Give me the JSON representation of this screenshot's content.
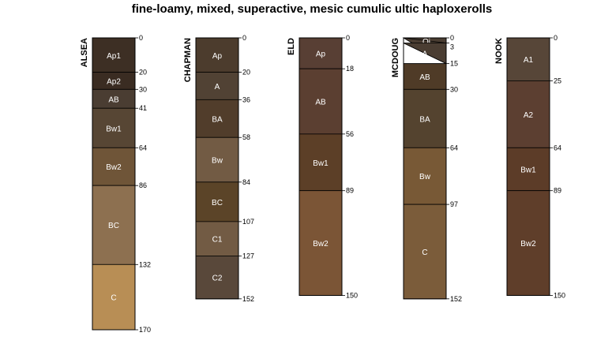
{
  "chart_data": {
    "type": "soil-profile",
    "title": "fine-loamy, mixed, superactive, mesic cumulic ultic haploxerolls",
    "depth_units": "cm",
    "profiles": [
      {
        "name": "ALSEA",
        "max_depth": 170,
        "horizons": [
          {
            "name": "Ap1",
            "top": 0,
            "bottom": 20,
            "color": "#3d2f24"
          },
          {
            "name": "Ap2",
            "top": 20,
            "bottom": 30,
            "color": "#3a2c22"
          },
          {
            "name": "AB",
            "top": 30,
            "bottom": 41,
            "color": "#4a3d32"
          },
          {
            "name": "Bw1",
            "top": 41,
            "bottom": 64,
            "color": "#574634"
          },
          {
            "name": "Bw2",
            "top": 64,
            "bottom": 86,
            "color": "#6f5538"
          },
          {
            "name": "BC",
            "top": 86,
            "bottom": 132,
            "color": "#8d7050"
          },
          {
            "name": "C",
            "top": 132,
            "bottom": 170,
            "color": "#b88e55"
          }
        ]
      },
      {
        "name": "CHAPMAN",
        "max_depth": 152,
        "horizons": [
          {
            "name": "Ap",
            "top": 0,
            "bottom": 20,
            "color": "#4c3c2d"
          },
          {
            "name": "A",
            "top": 20,
            "bottom": 36,
            "color": "#514234"
          },
          {
            "name": "BA",
            "top": 36,
            "bottom": 58,
            "color": "#513d2b"
          },
          {
            "name": "Bw",
            "top": 58,
            "bottom": 84,
            "color": "#725b44"
          },
          {
            "name": "BC",
            "top": 84,
            "bottom": 107,
            "color": "#5b4428"
          },
          {
            "name": "C1",
            "top": 107,
            "bottom": 127,
            "color": "#725b44"
          },
          {
            "name": "C2",
            "top": 127,
            "bottom": 152,
            "color": "#59483a"
          }
        ]
      },
      {
        "name": "ELD",
        "max_depth": 150,
        "horizons": [
          {
            "name": "Ap",
            "top": 0,
            "bottom": 18,
            "color": "#583f34"
          },
          {
            "name": "AB",
            "top": 18,
            "bottom": 56,
            "color": "#5b3f31"
          },
          {
            "name": "Bw1",
            "top": 56,
            "bottom": 89,
            "color": "#5c3f27"
          },
          {
            "name": "Bw2",
            "top": 89,
            "bottom": 150,
            "color": "#7b5536"
          }
        ]
      },
      {
        "name": "MCDOUG",
        "max_depth": 152,
        "horizons": [
          {
            "name": "Oi",
            "top": 0,
            "bottom": 3,
            "color": "#4a3d32"
          },
          {
            "name": "A",
            "top": 3,
            "bottom": 15,
            "color": "#4a3d32"
          },
          {
            "name": "AB",
            "top": 15,
            "bottom": 30,
            "color": "#4f3b27"
          },
          {
            "name": "BA",
            "top": 30,
            "bottom": 64,
            "color": "#54432f"
          },
          {
            "name": "Bw",
            "top": 64,
            "bottom": 97,
            "color": "#785936"
          },
          {
            "name": "C",
            "top": 97,
            "bottom": 152,
            "color": "#7b5c3a"
          }
        ]
      },
      {
        "name": "NOOK",
        "max_depth": 150,
        "horizons": [
          {
            "name": "A1",
            "top": 0,
            "bottom": 25,
            "color": "#574638"
          },
          {
            "name": "A2",
            "top": 25,
            "bottom": 64,
            "color": "#5c3f31"
          },
          {
            "name": "Bw1",
            "top": 64,
            "bottom": 89,
            "color": "#5c3c28"
          },
          {
            "name": "Bw2",
            "top": 89,
            "bottom": 150,
            "color": "#5f3e2a"
          }
        ]
      }
    ]
  }
}
